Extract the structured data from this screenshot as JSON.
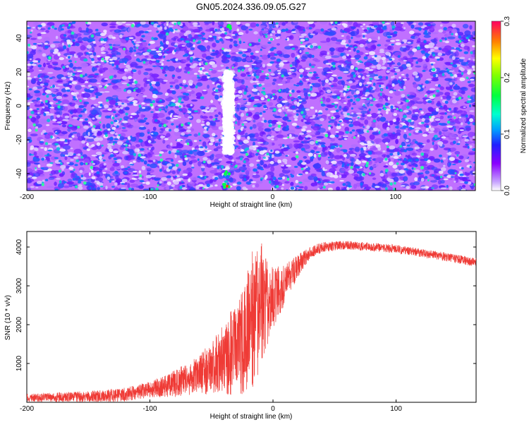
{
  "title": "GN05.2024.336.09.05.G27",
  "chart_data": [
    {
      "type": "heatmap",
      "xlabel": "Height of straight line (km)",
      "ylabel": "Frequency (Hz)",
      "xlim": [
        -200,
        165
      ],
      "ylim": [
        -50,
        50
      ],
      "x_ticks": [
        -200,
        -100,
        0,
        100
      ],
      "y_ticks": [
        -40,
        -20,
        0,
        20,
        40
      ],
      "colorbar": {
        "label": "Normalized spectral amplitude",
        "range": [
          0.0,
          0.3
        ],
        "ticks": [
          "0.0",
          "0.1",
          "0.2",
          "0.3"
        ]
      },
      "features": [
        {
          "name": "low-amplitude vertical band",
          "x_range": [
            -42,
            -30
          ],
          "y_range": [
            -28,
            20
          ]
        },
        {
          "name": "high-amplitude spots",
          "x": -37,
          "y": [
            -47,
            -40,
            47
          ]
        }
      ]
    },
    {
      "type": "line",
      "xlabel": "Height of straight line (km)",
      "ylabel": "SNR (10 * v/v)",
      "xlim": [
        -200,
        165
      ],
      "ylim": [
        0,
        4400
      ],
      "x_ticks": [
        -200,
        -100,
        0,
        100
      ],
      "y_ticks": [
        1000,
        2000,
        3000,
        4000
      ],
      "series_color": "#ef3b36",
      "envelope_x": [
        -200,
        -150,
        -120,
        -100,
        -80,
        -60,
        -50,
        -40,
        -30,
        -20,
        -15,
        -10,
        0,
        10,
        20,
        30,
        40,
        60,
        80,
        100,
        120,
        140,
        165
      ],
      "envelope_y": [
        120,
        140,
        200,
        330,
        480,
        700,
        900,
        1100,
        1400,
        1800,
        2200,
        2400,
        2700,
        3050,
        3500,
        3850,
        4000,
        4050,
        4000,
        3950,
        3850,
        3750,
        3600
      ],
      "noise_x": [
        -200,
        -100,
        -60,
        -40,
        -25,
        -17,
        -12,
        0,
        10,
        20,
        30,
        60,
        165
      ],
      "noise_amp": [
        100,
        200,
        500,
        900,
        1400,
        1800,
        1600,
        800,
        500,
        300,
        150,
        110,
        110
      ]
    }
  ]
}
